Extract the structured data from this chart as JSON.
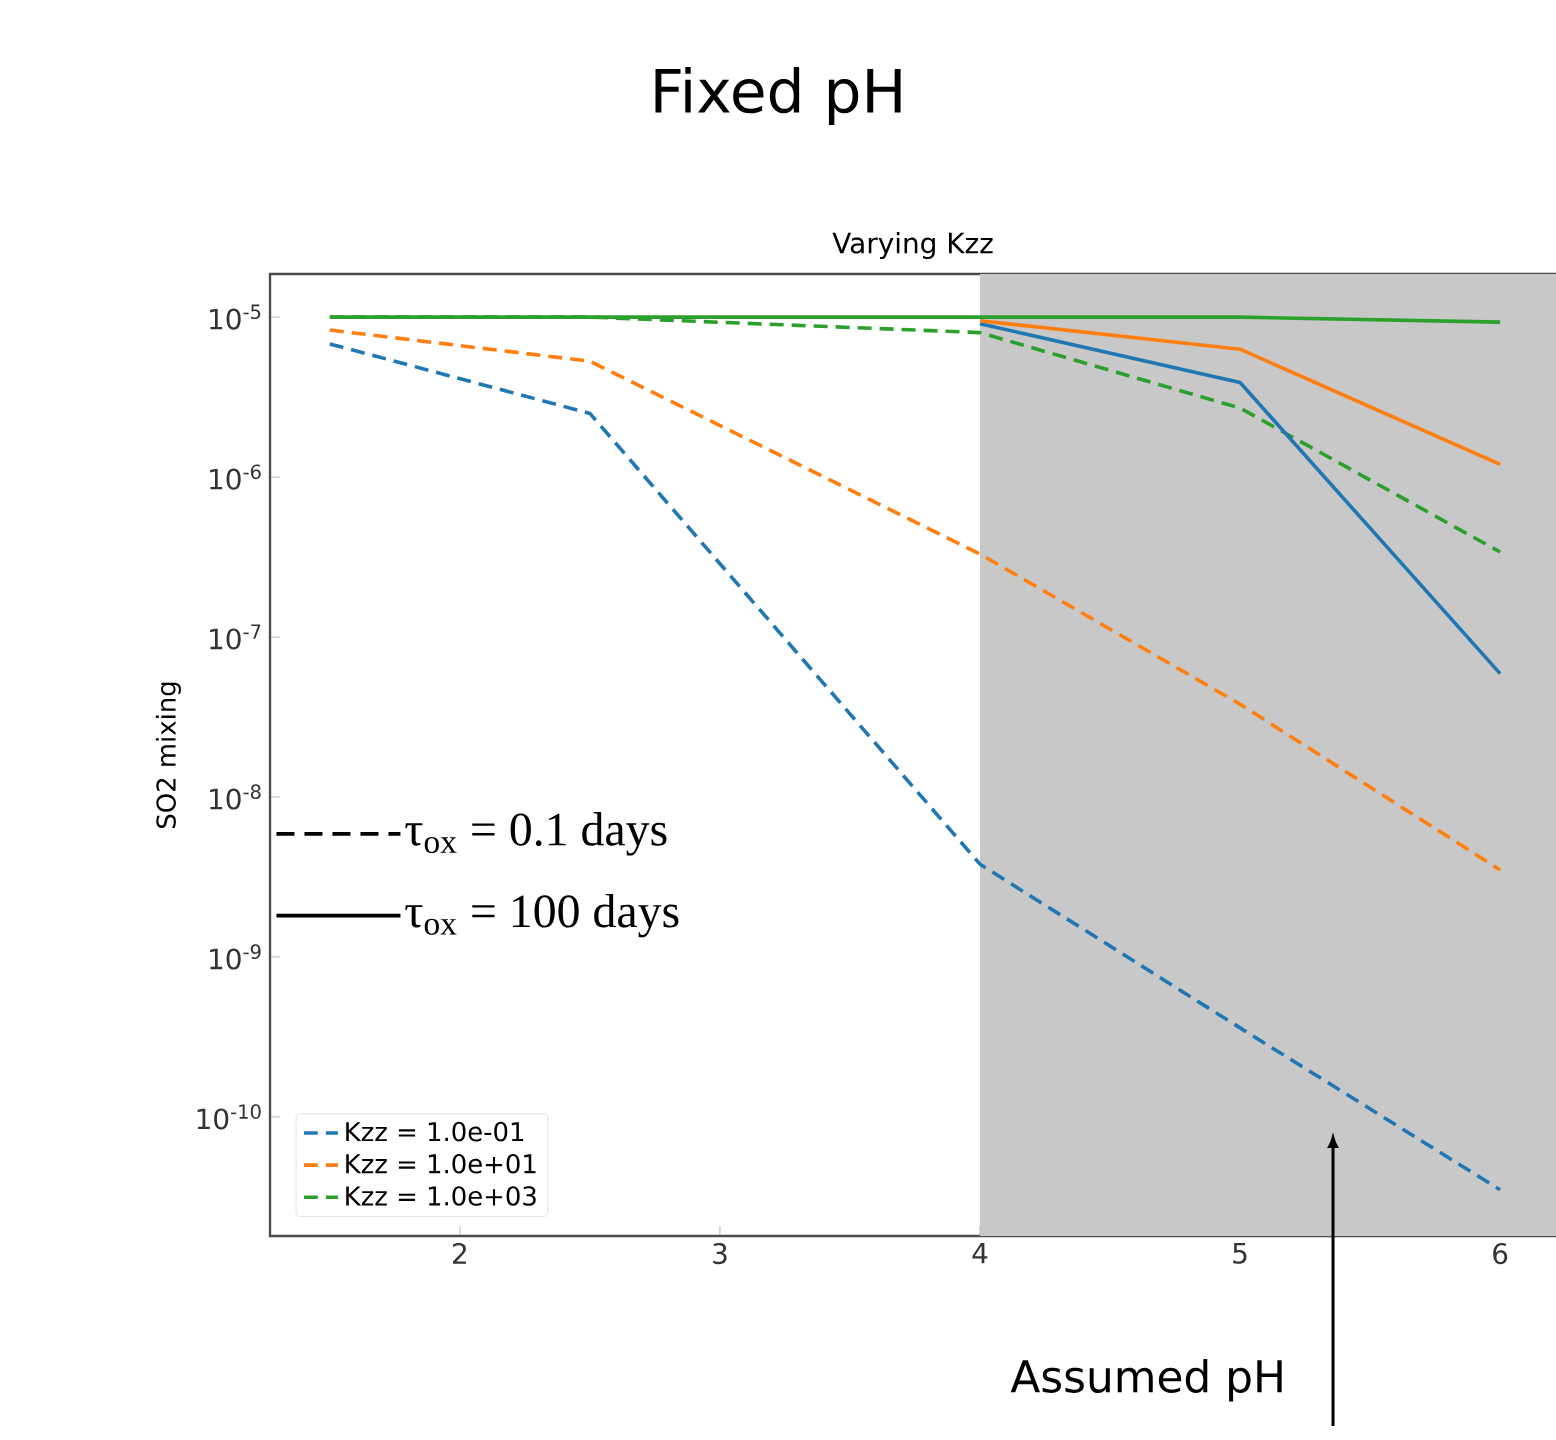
{
  "chart_data": {
    "type": "line",
    "title": "Fixed pH",
    "subtitle": "Varying Kzz",
    "ylabel": "SO2 mixing",
    "x": [
      1.5,
      2.5,
      4,
      5,
      6
    ],
    "series": [
      {
        "name": "Kzz = 1.0e-01",
        "color": "#1f77b4",
        "line_style": "dashed",
        "values": [
          6.8e-06,
          2.5e-06,
          3.8e-09,
          3.6e-10,
          3.5e-11
        ]
      },
      {
        "name": "Kzz = 1.0e+01",
        "color": "#ff7f0e",
        "line_style": "dashed",
        "values": [
          8.3e-06,
          5.3e-06,
          3.3e-07,
          3.8e-08,
          3.5e-09
        ]
      },
      {
        "name": "Kzz = 1.0e+03",
        "color": "#2ca02c",
        "line_style": "dashed",
        "values": [
          1e-05,
          1e-05,
          8e-06,
          2.7e-06,
          3.4e-07
        ]
      },
      {
        "color": "#1f77b4",
        "line_style": "solid",
        "values": [
          null,
          null,
          9.1e-06,
          3.9e-06,
          5.9e-08
        ]
      },
      {
        "color": "#ff7f0e",
        "line_style": "solid",
        "values": [
          null,
          null,
          9.5e-06,
          6.3e-06,
          1.2e-06
        ]
      },
      {
        "color": "#2ca02c",
        "line_style": "solid",
        "values": [
          1e-05,
          1e-05,
          1e-05,
          1e-05,
          9.3e-06
        ]
      }
    ],
    "log": "y",
    "legend": "bottom left",
    "xlim": [
      1.27,
      6.215
    ],
    "xticks": [
      2,
      3,
      4,
      5,
      6
    ],
    "ylim": [
      1.8e-11,
      1.86e-05
    ],
    "yticks": [
      {
        "value": 1e-10,
        "label": "10$^{-10}$"
      },
      {
        "value": 1e-09,
        "label": "10$^{-9}$"
      },
      {
        "value": 1e-08,
        "label": "10$^{-8}$"
      },
      {
        "value": 1e-07,
        "label": "10$^{-7}$"
      },
      {
        "value": 1e-06,
        "label": "10$^{-6}$"
      },
      {
        "value": 1e-05,
        "label": "10$^{-5}$"
      }
    ],
    "bands": [
      {
        "axis": "x",
        "from": 4,
        "to": 6.215,
        "label": "Assumed pH",
        "color": "#c8c8c8"
      }
    ],
    "annotations": [
      "τ$_{ox}$ = 0.1 days",
      "τ$_{ox}$ = 100 days"
    ]
  }
}
